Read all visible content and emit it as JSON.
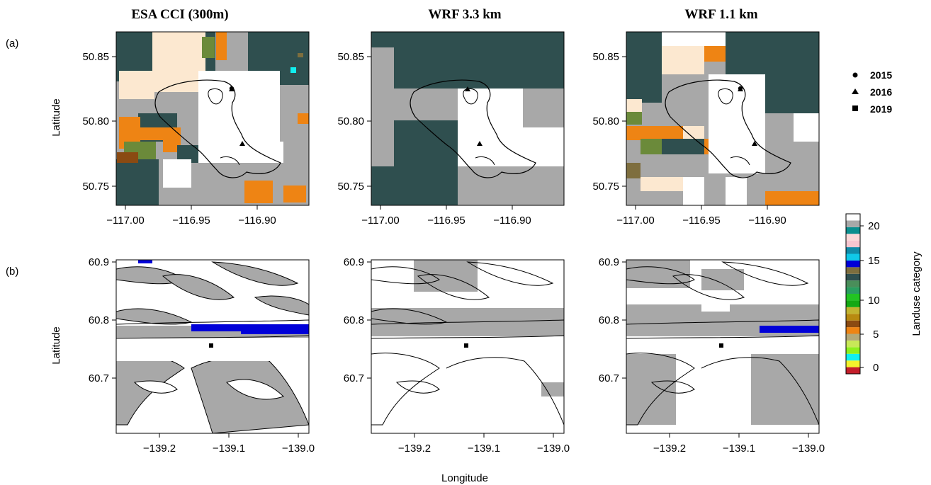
{
  "columns": [
    {
      "title": "ESA CCI (300m)"
    },
    {
      "title": "WRF 3.3 km"
    },
    {
      "title": "WRF 1.1 km"
    }
  ],
  "rows": [
    {
      "label": "(a)",
      "ylabel": "Latitude",
      "yticks": [
        "50.85",
        "50.80",
        "50.75"
      ],
      "xticks": [
        "−117.00",
        "−116.95",
        "−116.90"
      ]
    },
    {
      "label": "(b)",
      "ylabel": "Latitude",
      "yticks": [
        "60.9",
        "60.8",
        "60.7"
      ],
      "xticks": [
        "−139.2",
        "−139.1",
        "−139.0"
      ]
    }
  ],
  "xlabel": "Longitude",
  "legend": {
    "items": [
      {
        "label": "2015",
        "marker": "circle"
      },
      {
        "label": "2016",
        "marker": "triangle"
      },
      {
        "label": "2019",
        "marker": "square"
      }
    ]
  },
  "colorbar": {
    "title": "Landuse category",
    "ticks": [
      "20",
      "15",
      "10",
      "5",
      "0"
    ],
    "range": [
      0,
      24
    ],
    "colors": [
      "#c41e2a",
      "#f4f22c",
      "#10f0f0",
      "#8ef01c",
      "#c8e858",
      "#b4a878",
      "#ee8414",
      "#8a4a12",
      "#b88a10",
      "#c2b430",
      "#14a814",
      "#22c422",
      "#2a9e60",
      "#4a8e5a",
      "#2f4f4f",
      "#7e6e3e",
      "#0000d8",
      "#10c8e8",
      "#108aa8",
      "#f6c6d0",
      "#fad8d8",
      "#0a8e8e",
      "#a8a8a8",
      "#ffffff"
    ]
  },
  "colors": {
    "ice": "#ffffff",
    "rock": "#a8a8a8",
    "forest": "#2f4f4f",
    "shrub": "#ee8414",
    "grass": "#6b8a3a",
    "bare": "#fce8d0",
    "water": "#0000d8"
  }
}
